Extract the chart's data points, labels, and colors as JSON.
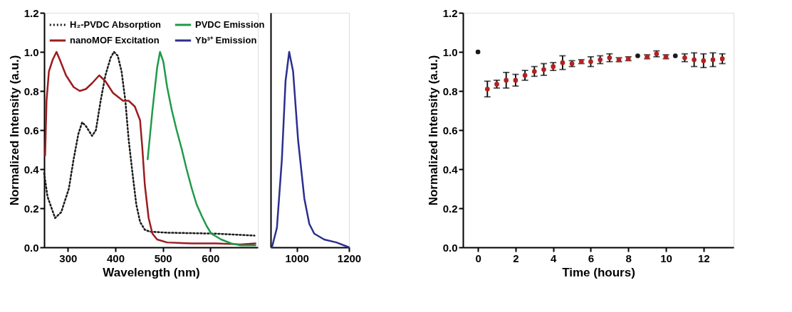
{
  "chart_data": [
    {
      "type": "line",
      "xlabel": "Wavelength (nm)",
      "ylabel": "Normalized Intensity (a.u.)",
      "xlim": [
        250,
        700
      ],
      "xticks": [
        300,
        400,
        500,
        600
      ],
      "ylim": [
        0,
        1.2
      ],
      "yticks": [
        {
          "value": 0,
          "label": "0.0"
        },
        {
          "value": 0.2,
          "label": "0.2"
        },
        {
          "value": 0.4,
          "label": "0.4"
        },
        {
          "value": 0.6,
          "label": "0.6"
        },
        {
          "value": 0.8,
          "label": "0.8"
        },
        {
          "value": 1,
          "label": "1.0"
        },
        {
          "value": 1.2,
          "label": "1.2"
        }
      ],
      "grid": false,
      "legend": "top",
      "marker": "none",
      "series": [
        {
          "name": "H₂-PVDC Absorption",
          "color": "#1a1a1a",
          "line_style": "dotted",
          "x": [
            250,
            257,
            273,
            286,
            302,
            312,
            322,
            330,
            338,
            351,
            359,
            369,
            379,
            390,
            397,
            405,
            413,
            421,
            428,
            436,
            444,
            452,
            462,
            473,
            509,
            612,
            693
          ],
          "values": [
            0.38,
            0.26,
            0.15,
            0.18,
            0.3,
            0.45,
            0.58,
            0.64,
            0.62,
            0.57,
            0.6,
            0.75,
            0.88,
            0.97,
            1.0,
            0.98,
            0.9,
            0.75,
            0.55,
            0.38,
            0.22,
            0.13,
            0.09,
            0.08,
            0.075,
            0.07,
            0.06
          ]
        },
        {
          "name": "nanoMOF Excitation",
          "color": "#9b1c1f",
          "line_style": "solid",
          "x": [
            252,
            255,
            260,
            268,
            276,
            283,
            296,
            312,
            325,
            338,
            351,
            366,
            379,
            395,
            416,
            428,
            441,
            452,
            457,
            462,
            470,
            478,
            488,
            509,
            561,
            612,
            664,
            695
          ],
          "values": [
            0.47,
            0.75,
            0.9,
            0.96,
            1.0,
            0.96,
            0.88,
            0.82,
            0.8,
            0.81,
            0.84,
            0.88,
            0.85,
            0.79,
            0.75,
            0.75,
            0.72,
            0.65,
            0.5,
            0.32,
            0.15,
            0.07,
            0.04,
            0.025,
            0.02,
            0.02,
            0.015,
            0.02
          ]
        },
        {
          "name": "PVDC Emission",
          "color": "#1f9a48",
          "line_style": "solid",
          "x": [
            468,
            478,
            488,
            494,
            501,
            509,
            519,
            529,
            540,
            550,
            561,
            571,
            582,
            592,
            602,
            623,
            644,
            664,
            695
          ],
          "values": [
            0.45,
            0.7,
            0.92,
            1.0,
            0.95,
            0.82,
            0.7,
            0.6,
            0.5,
            0.4,
            0.3,
            0.22,
            0.16,
            0.11,
            0.07,
            0.04,
            0.02,
            0.01,
            0.01
          ]
        }
      ]
    },
    {
      "type": "line",
      "xlim": [
        900,
        1200
      ],
      "xticks": [
        1000,
        1200
      ],
      "ylim": [
        0,
        1.2
      ],
      "tick_labels": "x",
      "grid": false,
      "marker": "none",
      "series": [
        {
          "name": "Yb³⁺ Emission",
          "color": "#2b2f8f",
          "line_style": "solid",
          "x": [
            905,
            924,
            943,
            957,
            971,
            986,
            1005,
            1029,
            1048,
            1067,
            1105,
            1152,
            1200
          ],
          "values": [
            0.0,
            0.1,
            0.45,
            0.85,
            1.0,
            0.9,
            0.55,
            0.25,
            0.12,
            0.07,
            0.04,
            0.025,
            0.0
          ]
        }
      ]
    },
    {
      "type": "scatter",
      "xlabel": "Time (hours)",
      "ylabel": "Normalized Intensity (a.u.)",
      "xlim": [
        -0.8,
        13.6
      ],
      "xticks": [
        0,
        2,
        4,
        6,
        8,
        10,
        12
      ],
      "ylim": [
        0,
        1.2
      ],
      "yticks": [
        {
          "value": 0,
          "label": "0.0"
        },
        {
          "value": 0.2,
          "label": "0.2"
        },
        {
          "value": 0.4,
          "label": "0.4"
        },
        {
          "value": 0.6,
          "label": "0.6"
        },
        {
          "value": 0.8,
          "label": "0.8"
        },
        {
          "value": 1,
          "label": "1.0"
        },
        {
          "value": 1.2,
          "label": "1.2"
        }
      ],
      "grid": false,
      "marker": "circle",
      "x": [
        0,
        0.5,
        1,
        1.5,
        2,
        2.5,
        3,
        3.5,
        4,
        4.5,
        5,
        5.5,
        6,
        6.5,
        7,
        7.5,
        8,
        8.5,
        9,
        9.5,
        10,
        10.5,
        11,
        11.5,
        12,
        12.5,
        13
      ],
      "values": [
        1.0,
        0.81,
        0.835,
        0.855,
        0.855,
        0.88,
        0.9,
        0.91,
        0.925,
        0.945,
        0.94,
        0.95,
        0.95,
        0.96,
        0.97,
        0.96,
        0.965,
        0.98,
        0.975,
        0.99,
        0.975,
        0.98,
        0.97,
        0.96,
        0.955,
        0.96,
        0.965
      ],
      "errors": [
        null,
        0.04,
        0.02,
        0.04,
        0.03,
        0.025,
        0.025,
        0.03,
        0.02,
        0.035,
        0.015,
        0.01,
        0.025,
        0.02,
        0.02,
        0.01,
        0.01,
        null,
        0.01,
        0.015,
        0.01,
        null,
        0.02,
        0.035,
        0.035,
        0.035,
        0.025
      ],
      "colors": [
        "#1a1a1a",
        "#b22222",
        "#b22222",
        "#b22222",
        "#b22222",
        "#b22222",
        "#b22222",
        "#b22222",
        "#b22222",
        "#b22222",
        "#b22222",
        "#b22222",
        "#b22222",
        "#b22222",
        "#b22222",
        "#b22222",
        "#b22222",
        "#1a1a1a",
        "#b22222",
        "#b22222",
        "#b22222",
        "#1a1a1a",
        "#b22222",
        "#b22222",
        "#b22222",
        "#b22222",
        "#b22222"
      ]
    }
  ]
}
